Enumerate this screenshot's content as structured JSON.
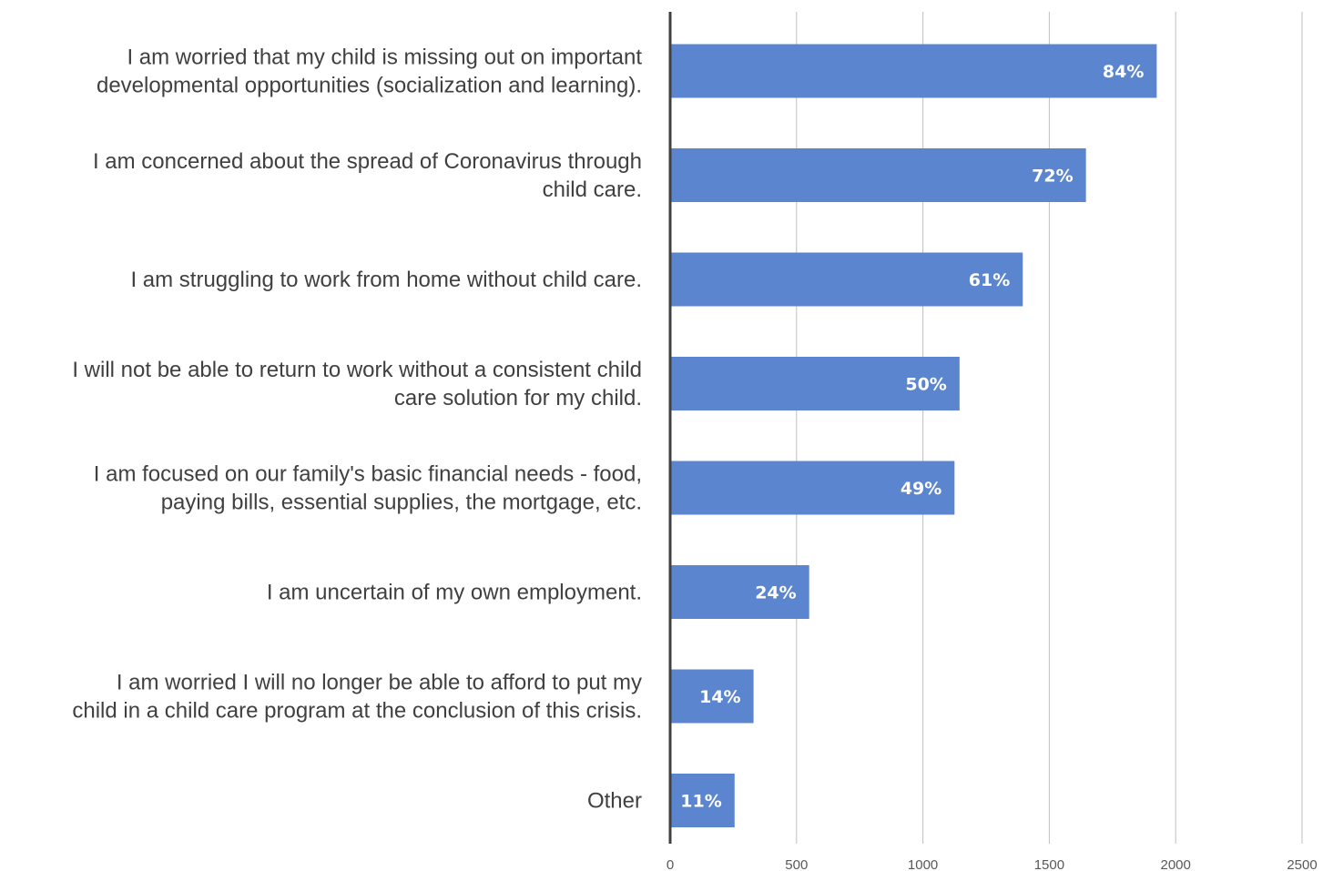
{
  "chart_data": {
    "type": "bar",
    "orientation": "horizontal",
    "categories": [
      [
        "I am worried that my child is missing out on important",
        "developmental opportunities (socialization and learning)."
      ],
      [
        "I am concerned about the spread of Coronavirus through",
        "child care."
      ],
      [
        "I am struggling to work from home without child care."
      ],
      [
        "I will not be able to return to work without a consistent child",
        "care solution for my child."
      ],
      [
        "I am focused on our family's basic financial needs - food,",
        "paying bills, essential supplies, the mortgage, etc."
      ],
      [
        "I am uncertain of my own employment."
      ],
      [
        "I am worried I will no longer be able to afford to put my",
        "child in a child care program at the conclusion of this crisis."
      ],
      [
        "Other"
      ]
    ],
    "values": [
      1925,
      1645,
      1395,
      1145,
      1125,
      550,
      330,
      255
    ],
    "data_labels": [
      "84%",
      "72%",
      "61%",
      "50%",
      "49%",
      "24%",
      "14%",
      "11%"
    ],
    "xlim": [
      0,
      2500
    ],
    "xticks": [
      0,
      500,
      1000,
      1500,
      2000,
      2500
    ],
    "xtick_labels": [
      "0",
      "500",
      "1000",
      "1500",
      "2000",
      "2500"
    ],
    "grid": true,
    "colors": {
      "bar": "#5b86cf",
      "grid": "#bfbfbf",
      "axis": "#404040"
    }
  }
}
